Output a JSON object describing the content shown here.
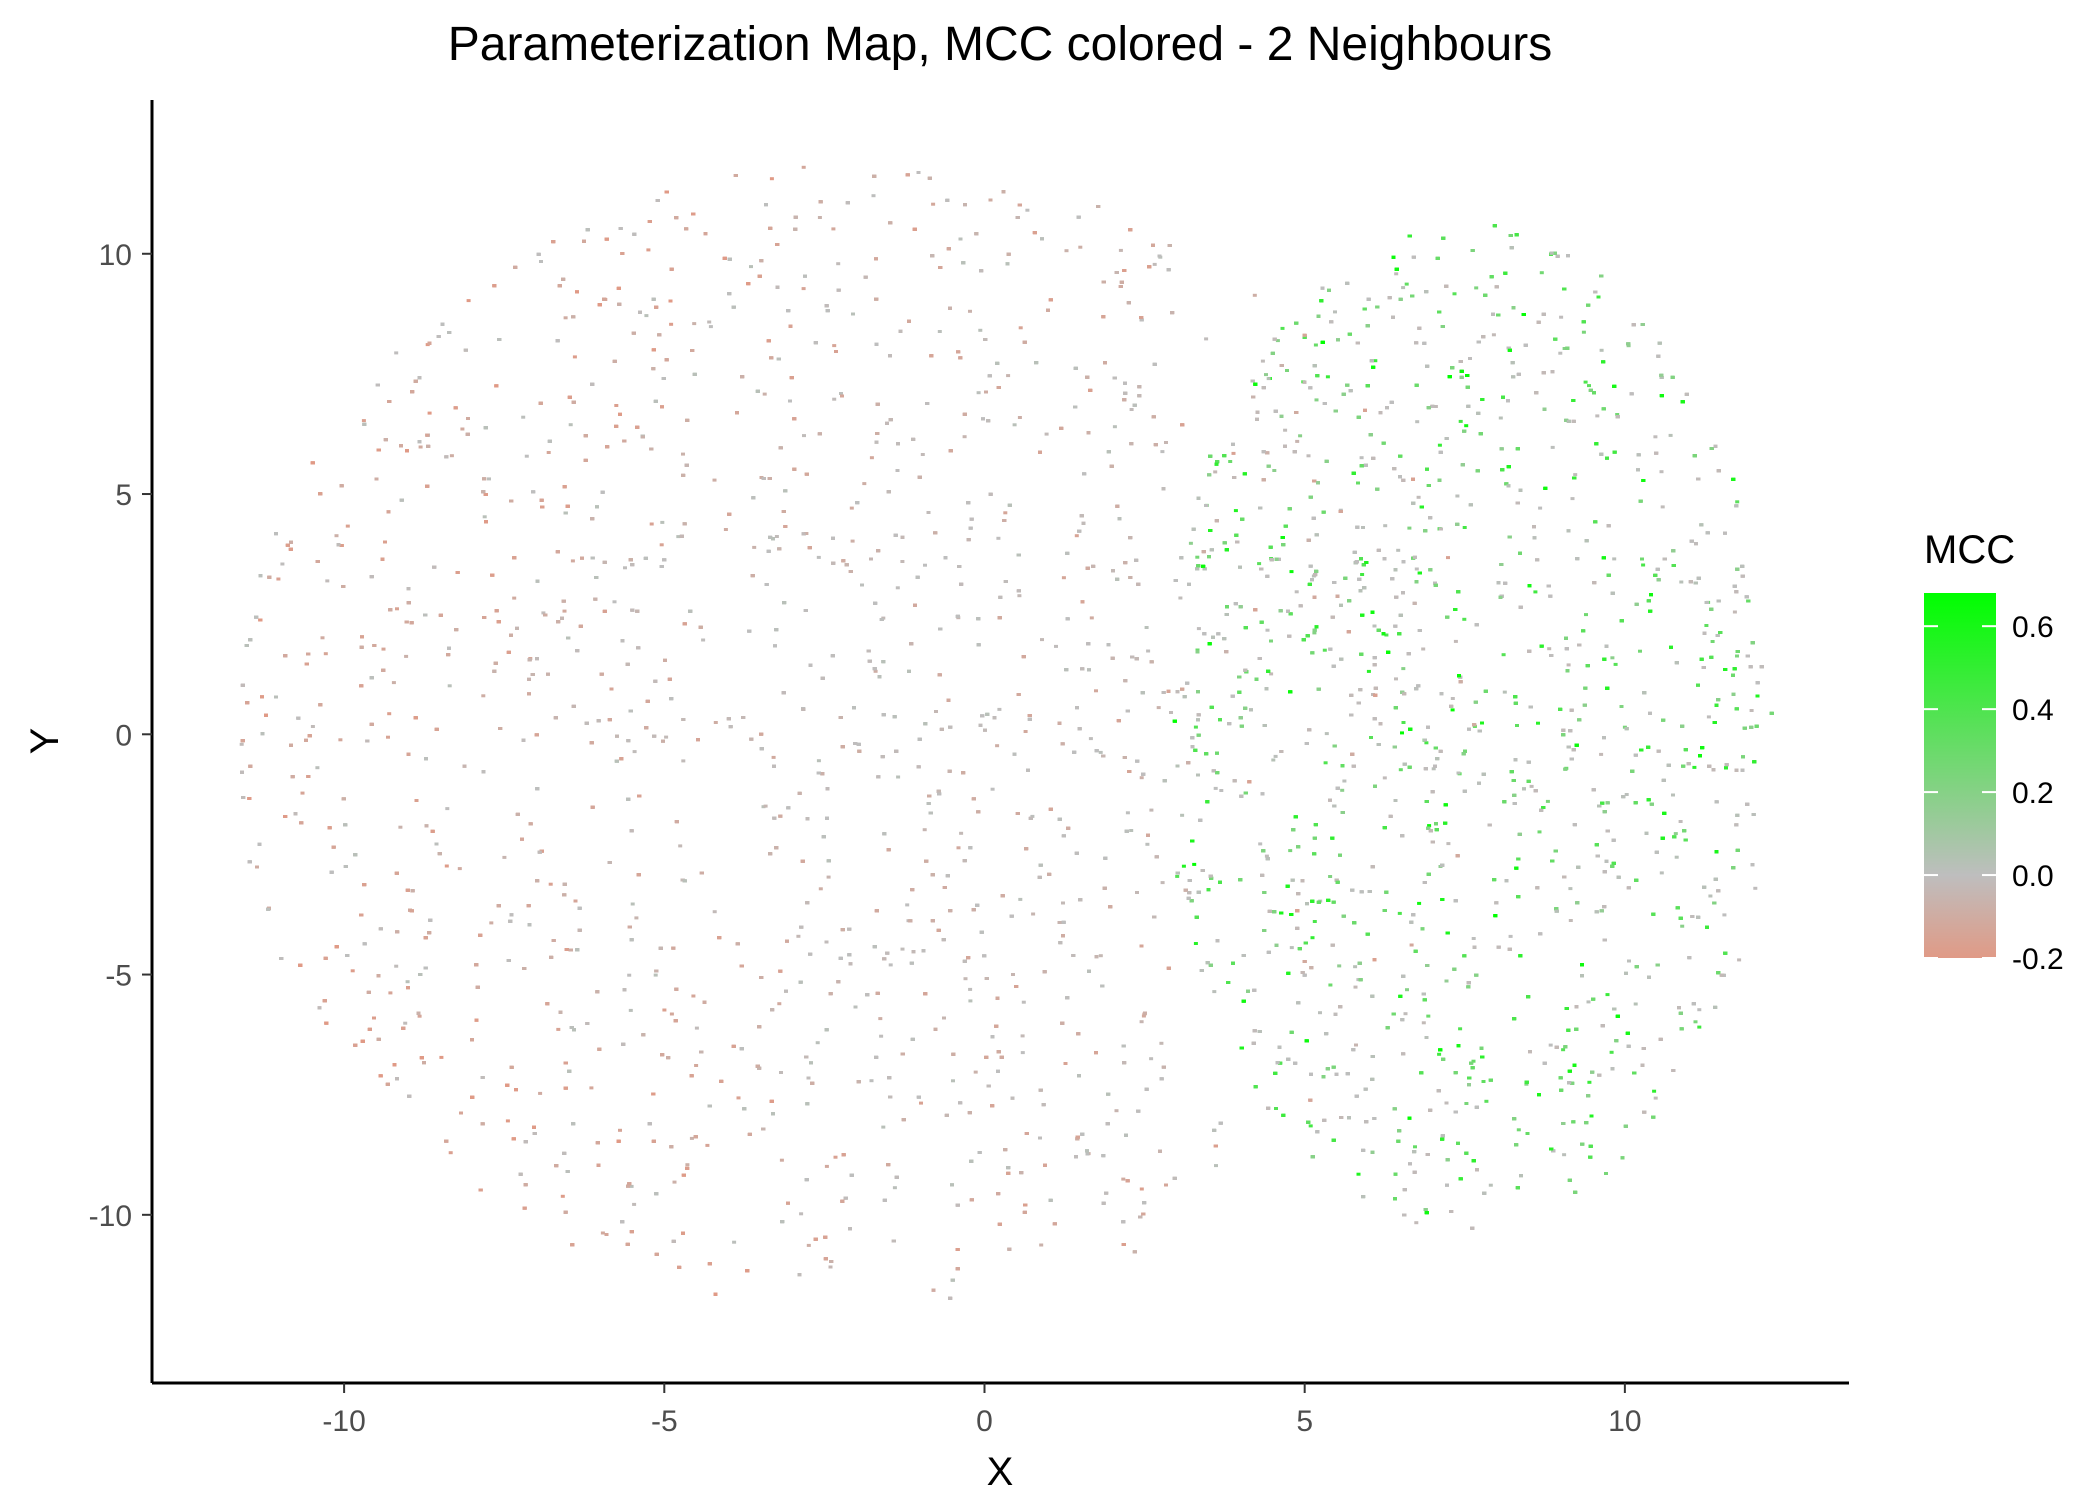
{
  "chart_data": {
    "type": "scatter",
    "title": "Parameterization Map, MCC colored - 2 Neighbours",
    "xlabel": "X",
    "ylabel": "Y",
    "xlim": [
      -13,
      13.5
    ],
    "ylim": [
      -13.5,
      13.2
    ],
    "xticks": [
      -10,
      -5,
      0,
      5,
      10
    ],
    "yticks": [
      -10,
      -5,
      0,
      5,
      10
    ],
    "grid": false,
    "legend": {
      "title": "MCC",
      "placement": "right",
      "range": [
        -0.2,
        0.68
      ],
      "ticks": [
        0.6,
        0.4,
        0.2,
        0.0,
        -0.2
      ],
      "tick_labels": [
        "0.6",
        "0.4",
        "0.2",
        "0.0",
        "-0.2"
      ],
      "colors": {
        "low": "#e09a86",
        "mid": "#bebebe",
        "high": "#00ff00"
      }
    },
    "series": [
      {
        "description": "dense point cloud",
        "clusters": [
          {
            "center": [
              -2.0,
              0.0
            ],
            "radius_x": 9.8,
            "radius_y": 12.0,
            "mcc_range": [
              -0.2,
              0.05
            ]
          },
          {
            "center": [
              7.5,
              0.2
            ],
            "radius_x": 4.8,
            "radius_y": 10.5,
            "mcc_range": [
              -0.05,
              0.68
            ]
          }
        ]
      }
    ]
  }
}
